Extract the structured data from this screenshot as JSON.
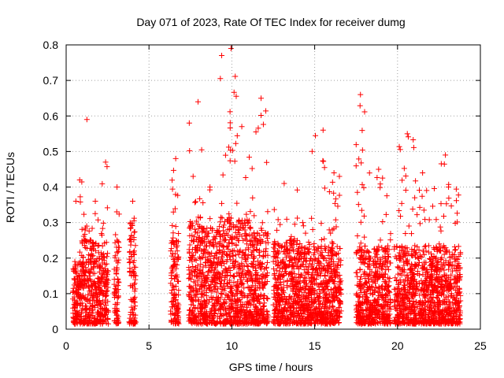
{
  "chart_data": {
    "type": "scatter",
    "title": "Day 071 of 2023, Rate Of TEC Index for receiver dumg",
    "xlabel": "GPS time / hours",
    "ylabel": "ROTI / TECUs",
    "xlim": [
      0,
      25
    ],
    "ylim": [
      0,
      0.8
    ],
    "xticks": [
      0,
      5,
      10,
      15,
      20,
      25
    ],
    "yticks": [
      0,
      0.1,
      0.2,
      0.3,
      0.4,
      0.5,
      0.6,
      0.7,
      0.8
    ],
    "grid": true,
    "marker": "plus",
    "color": "#ff0000",
    "bursts": [
      {
        "t0": 0.4,
        "t1": 0.75,
        "base": 0.09,
        "peak": 0.36
      },
      {
        "t0": 0.75,
        "t1": 1.0,
        "base": 0.12,
        "peak": 0.42
      },
      {
        "t0": 1.0,
        "t1": 1.5,
        "base": 0.14,
        "peak": 0.59
      },
      {
        "t0": 1.5,
        "t1": 2.0,
        "base": 0.12,
        "peak": 0.36
      },
      {
        "t0": 2.0,
        "t1": 2.55,
        "base": 0.1,
        "peak": 0.47
      },
      {
        "t0": 2.9,
        "t1": 3.2,
        "base": 0.13,
        "peak": 0.4
      },
      {
        "t0": 3.8,
        "t1": 4.2,
        "base": 0.15,
        "peak": 0.36
      },
      {
        "t0": 6.3,
        "t1": 6.8,
        "base": 0.12,
        "peak": 0.48
      },
      {
        "t0": 7.4,
        "t1": 8.2,
        "base": 0.15,
        "peak": 0.64
      },
      {
        "t0": 8.2,
        "t1": 9.3,
        "base": 0.14,
        "peak": 0.4
      },
      {
        "t0": 9.3,
        "t1": 10.3,
        "base": 0.15,
        "peak": 0.79
      },
      {
        "t0": 10.3,
        "t1": 11.2,
        "base": 0.15,
        "peak": 0.57
      },
      {
        "t0": 11.2,
        "t1": 12.2,
        "base": 0.13,
        "peak": 0.65
      },
      {
        "t0": 12.5,
        "t1": 14.0,
        "base": 0.12,
        "peak": 0.41
      },
      {
        "t0": 14.0,
        "t1": 14.8,
        "base": 0.11,
        "peak": 0.3
      },
      {
        "t0": 14.8,
        "t1": 15.8,
        "base": 0.11,
        "peak": 0.56
      },
      {
        "t0": 15.8,
        "t1": 16.6,
        "base": 0.11,
        "peak": 0.44
      },
      {
        "t0": 17.5,
        "t1": 18.5,
        "base": 0.11,
        "peak": 0.66
      },
      {
        "t0": 18.5,
        "t1": 19.6,
        "base": 0.11,
        "peak": 0.45
      },
      {
        "t0": 19.8,
        "t1": 21.0,
        "base": 0.11,
        "peak": 0.55
      },
      {
        "t0": 21.0,
        "t1": 22.3,
        "base": 0.11,
        "peak": 0.44
      },
      {
        "t0": 22.3,
        "t1": 23.8,
        "base": 0.11,
        "peak": 0.49
      }
    ]
  }
}
